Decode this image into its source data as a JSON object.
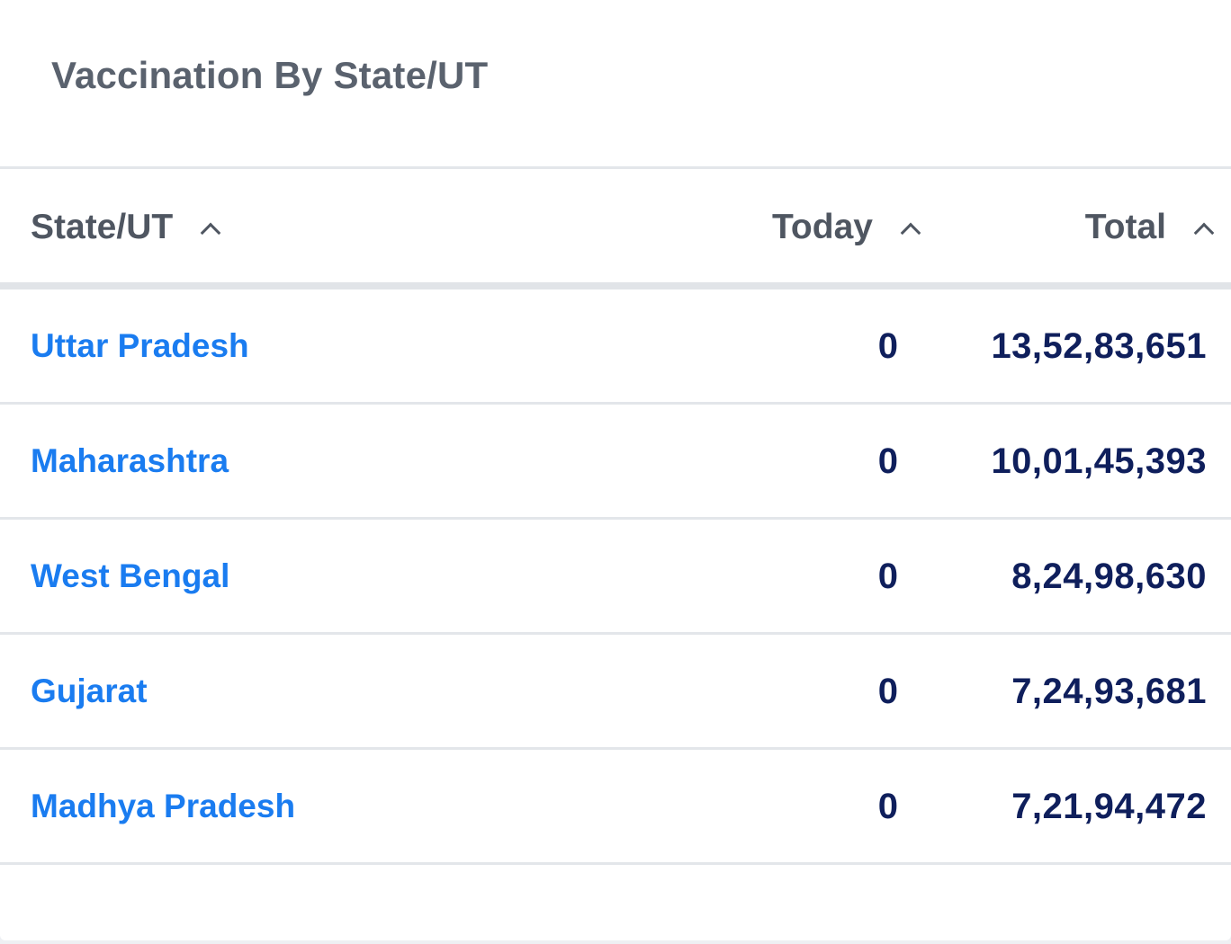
{
  "card": {
    "title": "Vaccination By State/UT"
  },
  "table": {
    "headers": {
      "state": "State/UT",
      "today": "Today",
      "total": "Total"
    },
    "sort_icons": [
      "chevron-up-icon",
      "chevron-up-icon",
      "chevron-up-icon"
    ],
    "rows": [
      {
        "state": "Uttar Pradesh",
        "today": "0",
        "total": "13,52,83,651"
      },
      {
        "state": "Maharashtra",
        "today": "0",
        "total": "10,01,45,393"
      },
      {
        "state": "West Bengal",
        "today": "0",
        "total": "8,24,98,630"
      },
      {
        "state": "Gujarat",
        "today": "0",
        "total": "7,24,93,681"
      },
      {
        "state": "Madhya Pradesh",
        "today": "0",
        "total": "7,21,94,472"
      }
    ]
  },
  "colors": {
    "link": "#1a7cf0",
    "value": "#0f1f5c",
    "heading": "#5a626e",
    "divider": "#e3e6ea"
  }
}
